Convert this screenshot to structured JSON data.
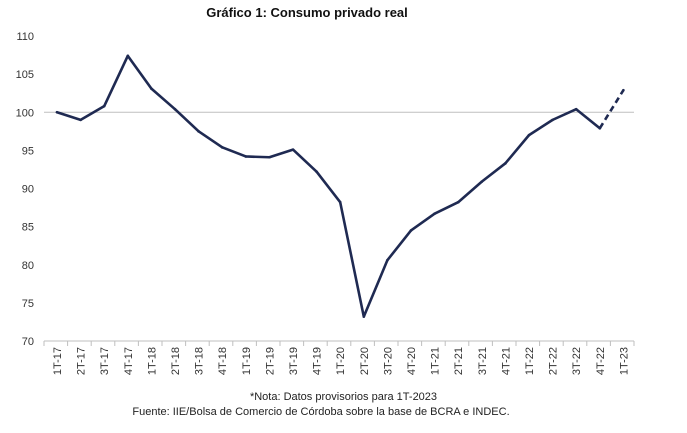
{
  "chart_data": {
    "type": "line",
    "title": "Gráfico 1: Consumo privado real",
    "xlabel": "",
    "ylabel": "",
    "ylim": [
      70,
      110
    ],
    "yticks": [
      70,
      75,
      80,
      85,
      90,
      95,
      100,
      105,
      110
    ],
    "gridlines": false,
    "baseline": 100,
    "categories": [
      "1T-17",
      "2T-17",
      "3T-17",
      "4T-17",
      "1T-18",
      "2T-18",
      "3T-18",
      "4T-18",
      "1T-19",
      "2T-19",
      "3T-19",
      "4T-19",
      "1T-20",
      "2T-20",
      "3T-20",
      "4T-20",
      "1T-21",
      "2T-21",
      "3T-21",
      "4T-21",
      "1T-22",
      "2T-22",
      "3T-22",
      "4T-22",
      "1T-23"
    ],
    "series": [
      {
        "name": "Consumo privado real",
        "color": "#1f2a52",
        "values": [
          100.0,
          99.0,
          100.8,
          107.4,
          103.1,
          100.4,
          97.5,
          95.4,
          94.2,
          94.1,
          95.1,
          92.2,
          88.2,
          73.2,
          80.6,
          84.5,
          86.7,
          88.2,
          90.9,
          93.3,
          97.0,
          99.0,
          100.4,
          97.9,
          102.9
        ],
        "provisional_from_index": 23
      }
    ],
    "note": "*Nota: Datos provisorios para 1T-2023",
    "source": "Fuente: IIE/Bolsa de Comercio de Córdoba sobre la base de BCRA e INDEC."
  }
}
